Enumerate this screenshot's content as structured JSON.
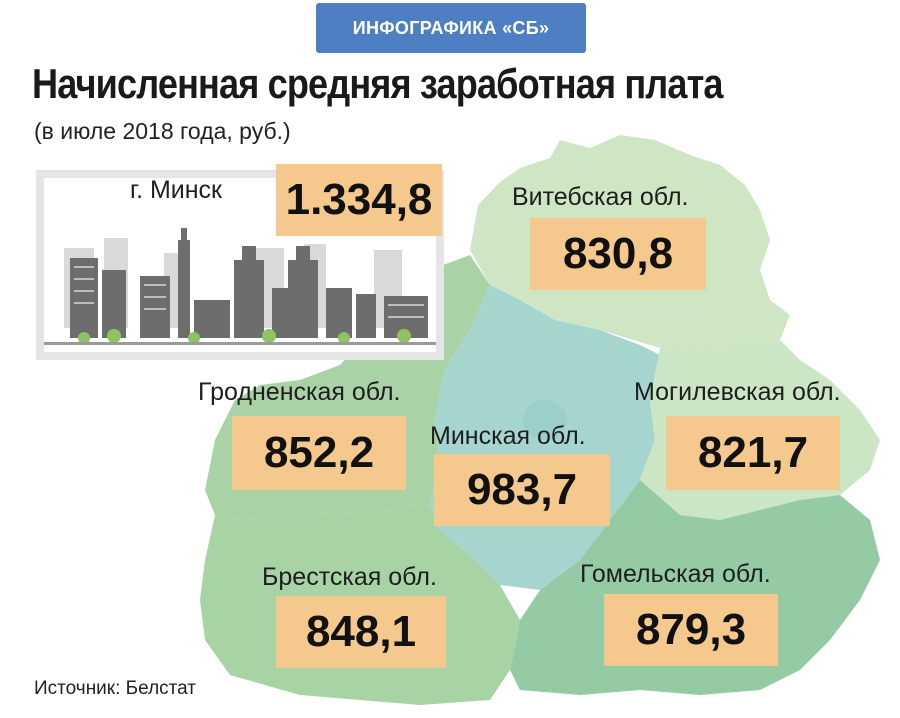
{
  "header": {
    "badge": "ИНФОГРАФИКА «СБ»",
    "title": "Начисленная средняя заработная плата",
    "subtitle": "(в июле 2018 года, руб.)"
  },
  "regions": [
    {
      "key": "minsk_city",
      "label": "г. Минск",
      "value": "1.334,8",
      "color": "#e5e5e5"
    },
    {
      "key": "vitebsk",
      "label": "Витебская обл.",
      "value": "830,8",
      "color": "#cfe6c4"
    },
    {
      "key": "grodno",
      "label": "Гродненская обл.",
      "value": "852,2",
      "color": "#a9d2a7"
    },
    {
      "key": "minsk_region",
      "label": "Минская обл.",
      "value": "983,7",
      "color": "#a6d5d0"
    },
    {
      "key": "mogilev",
      "label": "Могилевская обл.",
      "value": "821,7",
      "color": "#cbe6c5"
    },
    {
      "key": "brest",
      "label": "Брестская обл.",
      "value": "848,1",
      "color": "#a8d3a5"
    },
    {
      "key": "gomel",
      "label": "Гомельская обл.",
      "value": "879,3",
      "color": "#94cba4"
    }
  ],
  "source": "Источник: Белстат",
  "colors": {
    "badge": "#4d7fc2",
    "value_box": "#f5c98e"
  }
}
